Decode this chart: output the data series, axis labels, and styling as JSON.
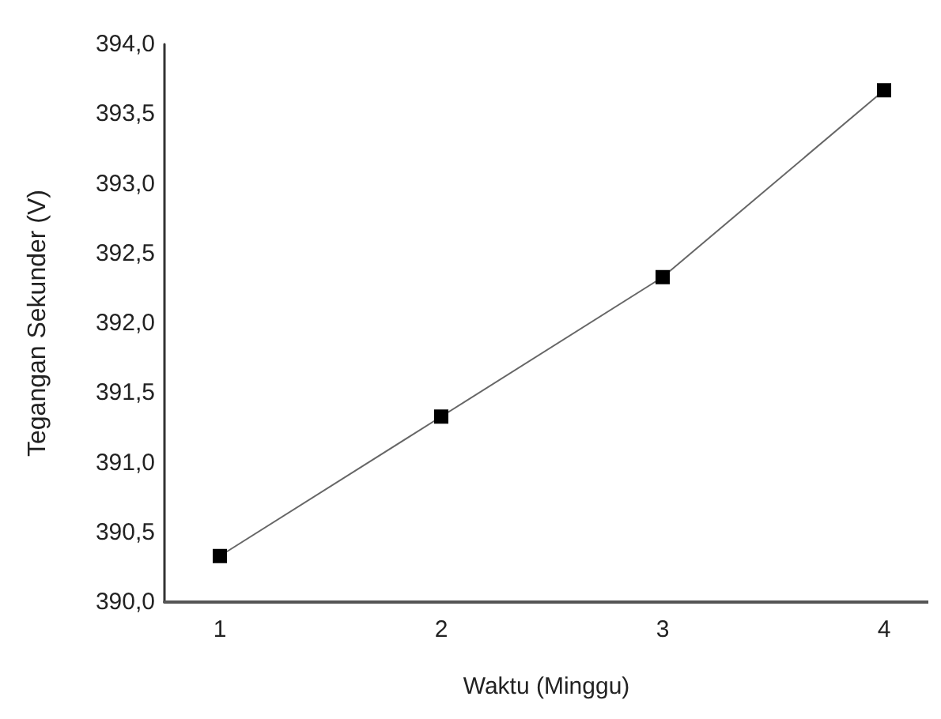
{
  "chart_data": {
    "type": "line",
    "xlabel": "Waktu (Minggu)",
    "ylabel": "Tegangan Sekunder (V)",
    "x": [
      1,
      2,
      3,
      4
    ],
    "series": [
      {
        "color": "#000000",
        "values": [
          390.33,
          391.33,
          392.33,
          393.67
        ]
      }
    ],
    "xlim": [
      0.75,
      4.2
    ],
    "xticks": [
      1,
      2,
      3,
      4
    ],
    "ylim": [
      390,
      394
    ],
    "yticks": [
      {
        "value": 390,
        "label": "390,0"
      },
      {
        "value": 390.5,
        "label": "390,5"
      },
      {
        "value": 391,
        "label": "391,0"
      },
      {
        "value": 391.5,
        "label": "391,5"
      },
      {
        "value": 392,
        "label": "392,0"
      },
      {
        "value": 392.5,
        "label": "392,5"
      },
      {
        "value": 393,
        "label": "393,0"
      },
      {
        "value": 393.5,
        "label": "393,5"
      },
      {
        "value": 394,
        "label": "394,0"
      }
    ],
    "grid": false,
    "marker": "square",
    "line_style": "solid"
  }
}
